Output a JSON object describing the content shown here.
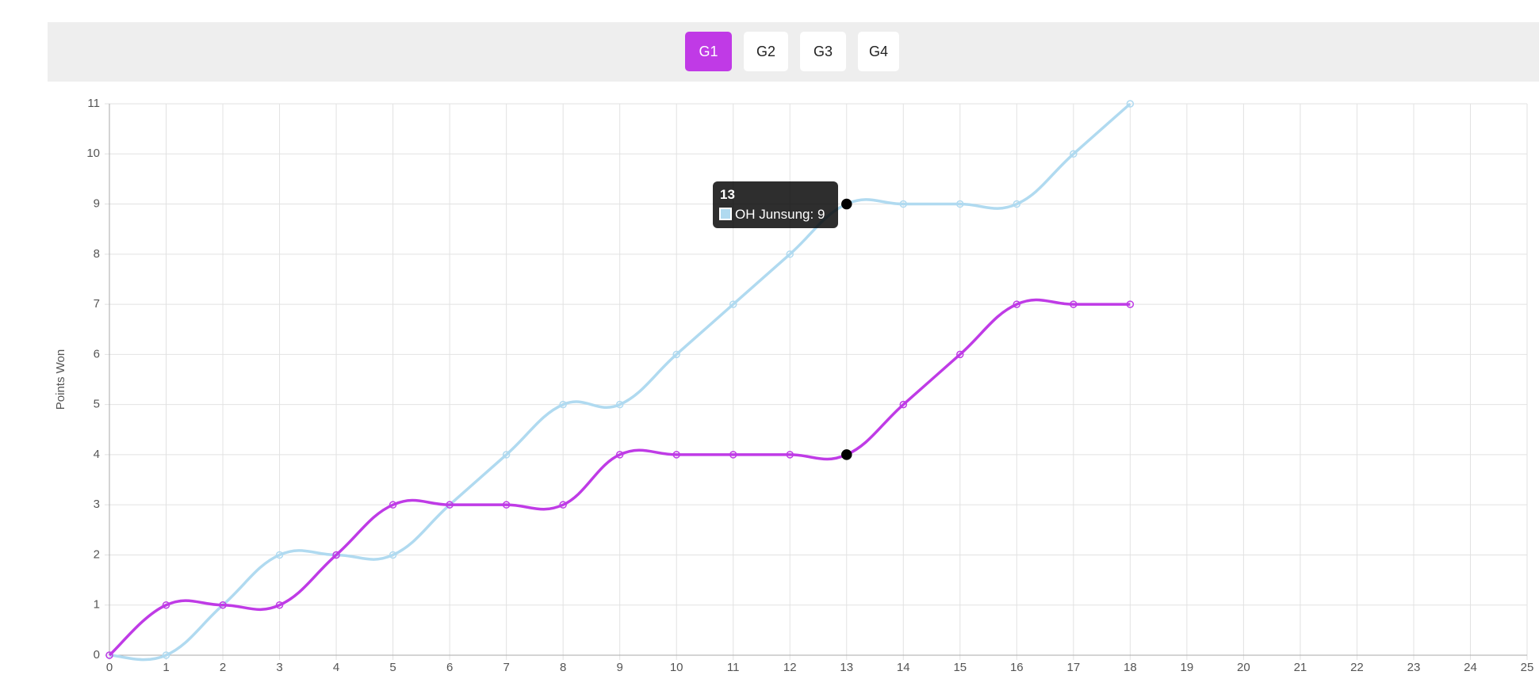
{
  "tabs": {
    "items": [
      "G1",
      "G2",
      "G3",
      "G4"
    ],
    "active": 0
  },
  "chart_data": {
    "type": "line",
    "y_label": "Points Won",
    "x": [
      0,
      1,
      2,
      3,
      4,
      5,
      6,
      7,
      8,
      9,
      10,
      11,
      12,
      13,
      14,
      15,
      16,
      17,
      18
    ],
    "series": [
      {
        "name": "OH Junsung",
        "color": "#b0daf0",
        "values": [
          0,
          0,
          1,
          2,
          2,
          2,
          3,
          4,
          5,
          5,
          6,
          7,
          8,
          9,
          9,
          9,
          9,
          10,
          11
        ]
      },
      {
        "color": "#bf3be6",
        "values": [
          0,
          1,
          1,
          1,
          2,
          3,
          3,
          3,
          3,
          4,
          4,
          4,
          4,
          4,
          5,
          6,
          7,
          7,
          7
        ]
      }
    ],
    "xlim": [
      0,
      25
    ],
    "xticks": [
      0,
      1,
      2,
      3,
      4,
      5,
      6,
      7,
      8,
      9,
      10,
      11,
      12,
      13,
      14,
      15,
      16,
      17,
      18,
      19,
      20,
      21,
      22,
      23,
      24,
      25
    ],
    "ylim": [
      0,
      11
    ],
    "yticks": [
      0,
      1,
      2,
      3,
      4,
      5,
      6,
      7,
      8,
      9,
      10,
      11
    ],
    "grid": true,
    "tooltip": {
      "title": "13",
      "text": "OH Junsung: 9"
    }
  }
}
